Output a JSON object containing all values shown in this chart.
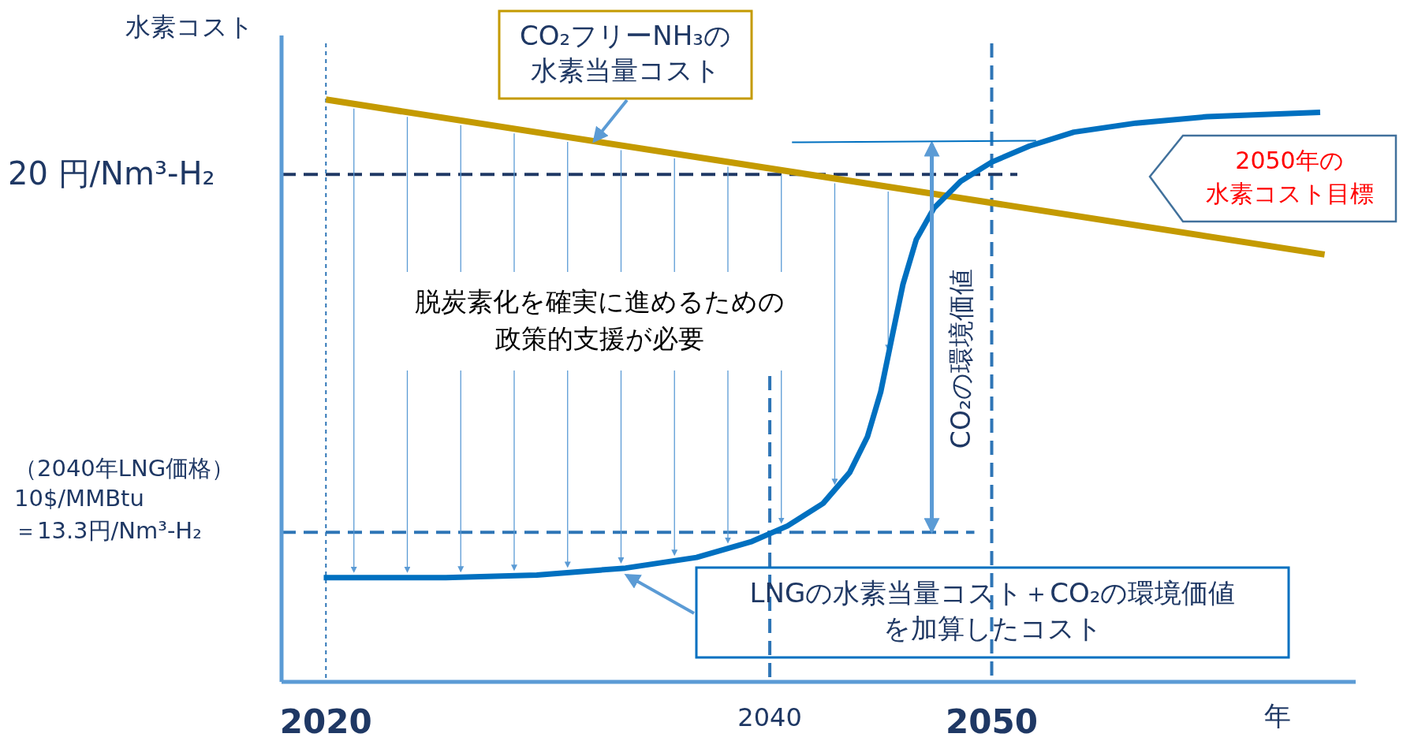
{
  "chart_data": {
    "type": "line",
    "xlabel": "年",
    "ylabel": "水素コスト",
    "xlim": [
      2018,
      2066.4
    ],
    "ylim": [
      10.5,
      22.6
    ],
    "xticks": [
      2020,
      2040,
      2050
    ],
    "yticks": [
      {
        "value": 20,
        "label": "20 円/Nm³-H₂"
      },
      {
        "value": 13.3,
        "label": "＝13.3円/Nm³-H₂"
      }
    ],
    "grid": false,
    "marker": "none",
    "line_style": "solid",
    "series": [
      {
        "color": "#c49a00",
        "x": [
          2020,
          2065
        ],
        "values": [
          21.4,
          18.5
        ]
      },
      {
        "color": "#0070c0",
        "x": [
          2019.9,
          2025.4,
          2029.5,
          2033.5,
          2036.7,
          2039.2,
          2040.8,
          2042.4,
          2043.6,
          2044.4,
          2045.0,
          2045.5,
          2046.0,
          2046.6,
          2047.4,
          2048.6,
          2050.0,
          2051.7,
          2053.7,
          2056.5,
          2059.7,
          2064.8
        ],
        "values": [
          12.45,
          12.45,
          12.5,
          12.63,
          12.83,
          13.13,
          13.42,
          13.84,
          14.42,
          15.09,
          15.93,
          16.94,
          17.94,
          18.78,
          19.37,
          19.87,
          20.23,
          20.53,
          20.79,
          20.96,
          21.08,
          21.16
        ]
      }
    ],
    "ref_lines": [
      {
        "axis": "y",
        "value": 20,
        "color": "#1f3864",
        "line_style": "dashed"
      },
      {
        "axis": "y",
        "value": 13.3,
        "color": "#2e75b6",
        "line_style": "dashed"
      },
      {
        "axis": "x",
        "value": 2020,
        "color": "#2e75b6",
        "line_style": "dotted"
      },
      {
        "axis": "x",
        "value": 2040,
        "color": "#2e75b6",
        "line_style": "dashed"
      },
      {
        "axis": "x",
        "value": 2050,
        "color": "#2e75b6",
        "line_style": "dashed"
      }
    ],
    "annotations": [
      {
        "text": "CO₂フリーNH₃の水素当量コスト",
        "x": 2032.1,
        "y": 20.75
      },
      "2050年の水素コスト目標",
      "脱炭素化を確実に進めるための政策的支援が必要",
      "CO₂の環境価値",
      "LNGの水素当量コスト＋CO₂の環境価値を加算したコスト",
      "（2040年LNG価格）",
      "10$/MMBtu"
    ]
  }
}
